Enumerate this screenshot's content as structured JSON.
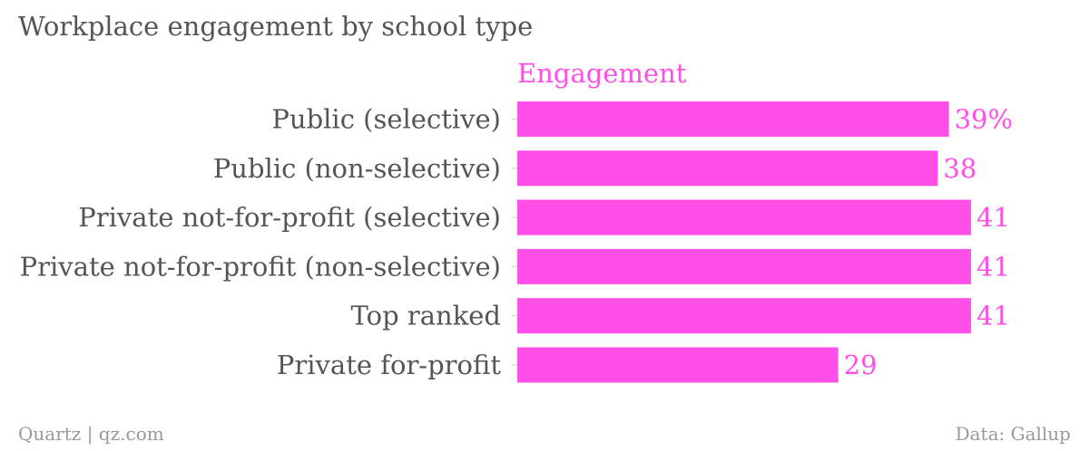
{
  "chart_data": {
    "type": "bar",
    "orientation": "horizontal",
    "title": "Workplace engagement by school type",
    "categories": [
      "Public (selective)",
      "Public (non-selective)",
      "Private not-for-profit (selective)",
      "Private not-for-profit (non-selective)",
      "Top ranked",
      "Private for-profit"
    ],
    "series": [
      {
        "name": "Engagement",
        "values": [
          39,
          38,
          41,
          41,
          41,
          29
        ],
        "value_labels": [
          "39%",
          "38",
          "41",
          "41",
          "41",
          "29"
        ],
        "color": "#ff4fe6"
      }
    ],
    "xlim": [
      0,
      41
    ],
    "grid": false
  },
  "footer": {
    "source_left": "Quartz | qz.com",
    "source_right": "Data: Gallup"
  },
  "colors": {
    "text": "#555555",
    "footer_text": "#999999",
    "accent": "#ff4fe6"
  }
}
